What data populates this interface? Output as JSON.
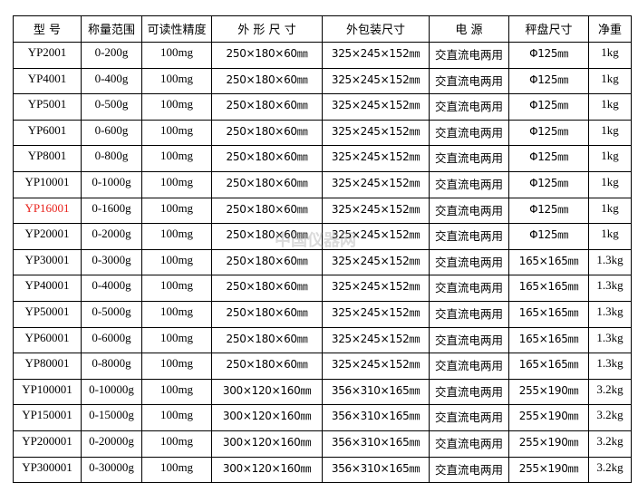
{
  "watermark": "中国仪器网",
  "headers": [
    "型 号",
    "称量范围",
    "可读性精度",
    "外 形 尺 寸",
    "外包装尺寸",
    "电 源",
    "秤盘尺寸",
    "净重"
  ],
  "highlight_color": "#e8201a",
  "rows": [
    {
      "model": "YP2001",
      "range": "0-200g",
      "precision": "100mg",
      "size": "250×180×60㎜",
      "package": "325×245×152㎜",
      "power": "交直流电两用",
      "pan": "Φ125㎜",
      "weight": "1kg"
    },
    {
      "model": "YP4001",
      "range": "0-400g",
      "precision": "100mg",
      "size": "250×180×60㎜",
      "package": "325×245×152㎜",
      "power": "交直流电两用",
      "pan": "Φ125㎜",
      "weight": "1kg"
    },
    {
      "model": "YP5001",
      "range": "0-500g",
      "precision": "100mg",
      "size": "250×180×60㎜",
      "package": "325×245×152㎜",
      "power": "交直流电两用",
      "pan": "Φ125㎜",
      "weight": "1kg"
    },
    {
      "model": "YP6001",
      "range": "0-600g",
      "precision": "100mg",
      "size": "250×180×60㎜",
      "package": "325×245×152㎜",
      "power": "交直流电两用",
      "pan": "Φ125㎜",
      "weight": "1kg"
    },
    {
      "model": "YP8001",
      "range": "0-800g",
      "precision": "100mg",
      "size": "250×180×60㎜",
      "package": "325×245×152㎜",
      "power": "交直流电两用",
      "pan": "Φ125㎜",
      "weight": "1kg"
    },
    {
      "model": "YP10001",
      "range": "0-1000g",
      "precision": "100mg",
      "size": "250×180×60㎜",
      "package": "325×245×152㎜",
      "power": "交直流电两用",
      "pan": "Φ125㎜",
      "weight": "1kg"
    },
    {
      "model": "YP16001",
      "range": "0-1600g",
      "precision": "100mg",
      "size": "250×180×60㎜",
      "package": "325×245×152㎜",
      "power": "交直流电两用",
      "pan": "Φ125㎜",
      "weight": "1kg",
      "highlight": true
    },
    {
      "model": "YP20001",
      "range": "0-2000g",
      "precision": "100mg",
      "size": "250×180×60㎜",
      "package": "325×245×152㎜",
      "power": "交直流电两用",
      "pan": "Φ125㎜",
      "weight": "1kg"
    },
    {
      "model": "YP30001",
      "range": "0-3000g",
      "precision": "100mg",
      "size": "250×180×60㎜",
      "package": "325×245×152㎜",
      "power": "交直流电两用",
      "pan": "165×165㎜",
      "weight": "1.3kg"
    },
    {
      "model": "YP40001",
      "range": "0-4000g",
      "precision": "100mg",
      "size": "250×180×60㎜",
      "package": "325×245×152㎜",
      "power": "交直流电两用",
      "pan": "165×165㎜",
      "weight": "1.3kg"
    },
    {
      "model": "YP50001",
      "range": "0-5000g",
      "precision": "100mg",
      "size": "250×180×60㎜",
      "package": "325×245×152㎜",
      "power": "交直流电两用",
      "pan": "165×165㎜",
      "weight": "1.3kg"
    },
    {
      "model": "YP60001",
      "range": "0-6000g",
      "precision": "100mg",
      "size": "250×180×60㎜",
      "package": "325×245×152㎜",
      "power": "交直流电两用",
      "pan": "165×165㎜",
      "weight": "1.3kg"
    },
    {
      "model": "YP80001",
      "range": "0-8000g",
      "precision": "100mg",
      "size": "250×180×60㎜",
      "package": "325×245×152㎜",
      "power": "交直流电两用",
      "pan": "165×165㎜",
      "weight": "1.3kg"
    },
    {
      "model": "YP100001",
      "range": "0-10000g",
      "precision": "100mg",
      "size": "300×120×160㎜",
      "package": "356×310×165㎜",
      "power": "交直流电两用",
      "pan": "255×190㎜",
      "weight": "3.2kg"
    },
    {
      "model": "YP150001",
      "range": "0-15000g",
      "precision": "100mg",
      "size": "300×120×160㎜",
      "package": "356×310×165㎜",
      "power": "交直流电两用",
      "pan": "255×190㎜",
      "weight": "3.2kg"
    },
    {
      "model": "YP200001",
      "range": "0-20000g",
      "precision": "100mg",
      "size": "300×120×160㎜",
      "package": "356×310×165㎜",
      "power": "交直流电两用",
      "pan": "255×190㎜",
      "weight": "3.2kg"
    },
    {
      "model": "YP300001",
      "range": "0-30000g",
      "precision": "100mg",
      "size": "300×120×160㎜",
      "package": "356×310×165㎜",
      "power": "交直流电两用",
      "pan": "255×190㎜",
      "weight": "3.2kg"
    }
  ]
}
